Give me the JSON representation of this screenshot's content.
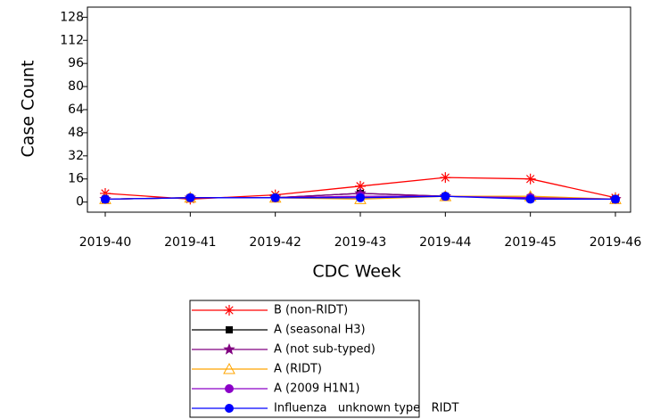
{
  "chart_data": {
    "type": "line",
    "x_label": "CDC Week",
    "y_label": "Case Count",
    "categories": [
      "2019-40",
      "2019-41",
      "2019-42",
      "2019-43",
      "2019-44",
      "2019-45",
      "2019-46"
    ],
    "ylim": [
      -7,
      135
    ],
    "yticks": [
      0,
      16,
      32,
      48,
      64,
      80,
      96,
      112,
      128
    ],
    "series": [
      {
        "name": "B (non-RIDT)",
        "color": "#ff0000",
        "marker": "asterisk",
        "values": [
          6,
          2,
          5,
          11,
          17,
          16,
          3
        ]
      },
      {
        "name": "A (seasonal H3)",
        "color": "#000000",
        "marker": "square",
        "values": [
          2,
          3,
          3,
          6,
          4,
          3,
          2
        ]
      },
      {
        "name": "A (not sub-typed)",
        "color": "#800080",
        "marker": "star",
        "values": [
          2,
          3,
          3,
          6,
          4,
          3,
          2
        ]
      },
      {
        "name": "A (RIDT)",
        "color": "#ffa500",
        "marker": "triangle",
        "values": [
          2,
          3,
          3,
          2,
          4,
          4,
          2
        ]
      },
      {
        "name": "A (2009 H1N1)",
        "color": "#8b00c8",
        "marker": "circle",
        "values": [
          2,
          3,
          3,
          4,
          4,
          3,
          2
        ]
      },
      {
        "name": "Influenza   unknown type   RIDT",
        "color": "#0000ff",
        "marker": "circle",
        "values": [
          2,
          3,
          3,
          3,
          4,
          2,
          2
        ]
      }
    ]
  }
}
